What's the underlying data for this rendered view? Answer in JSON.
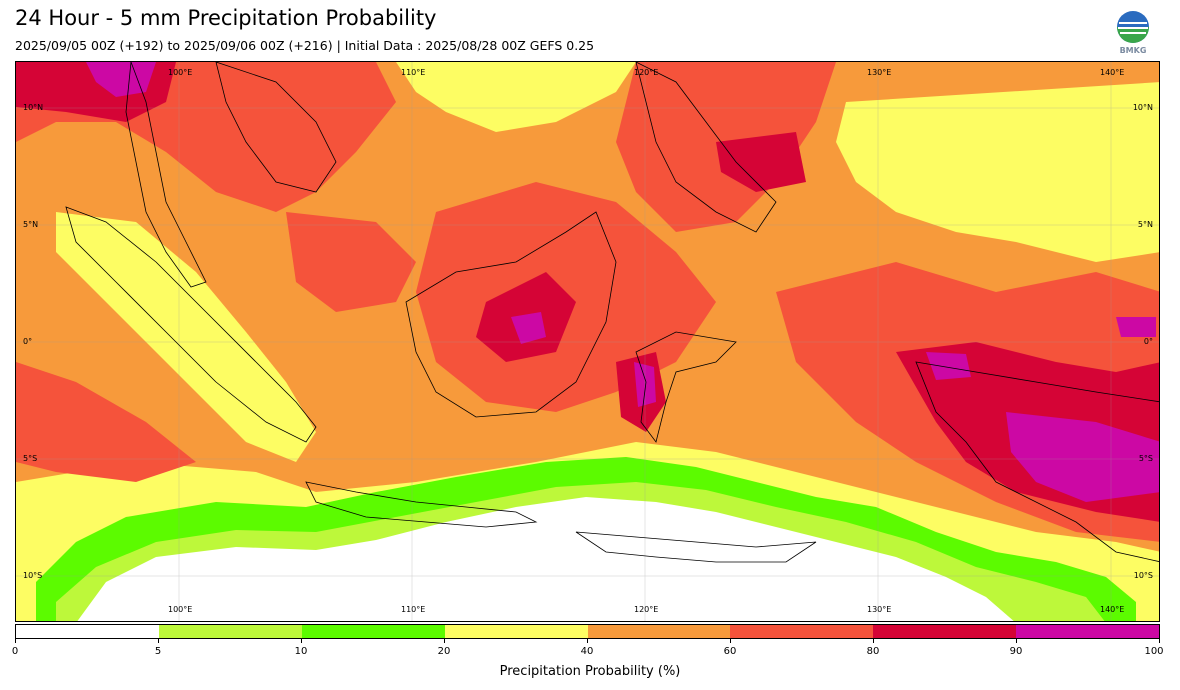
{
  "header": {
    "title": "24 Hour - 5 mm Precipitation Probability",
    "subtitle": "2025/09/05 00Z (+192) to 2025/09/06 00Z (+216) | Initial Data : 2025/08/28 00Z GEFS 0.25",
    "logo_text": "BMKG"
  },
  "map": {
    "longitude_labels": [
      "100°E",
      "110°E",
      "120°E",
      "130°E",
      "140°E"
    ],
    "latitude_labels": [
      "10°N",
      "5°N",
      "0°",
      "5°S",
      "10°S"
    ],
    "colors": {
      "c0": "#ffffff",
      "c5": "#bdf83a",
      "c10": "#5cfb00",
      "c20": "#fdfd63",
      "c40": "#f79a3b",
      "c60": "#f5533b",
      "c80": "#d50436",
      "c90": "#cc08a4"
    }
  },
  "colorbar": {
    "title": "Precipitation Probability (%)",
    "ticks": [
      "0",
      "5",
      "10",
      "20",
      "40",
      "60",
      "80",
      "90",
      "100"
    ],
    "colors": [
      "#ffffff",
      "#bdf83a",
      "#5cfb00",
      "#fdfd63",
      "#f79a3b",
      "#f5533b",
      "#d50436",
      "#cc08a4"
    ]
  }
}
